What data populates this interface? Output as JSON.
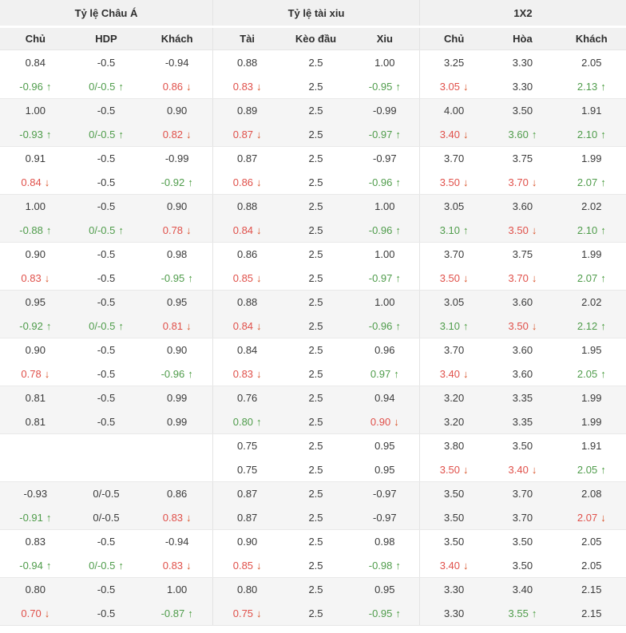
{
  "table": {
    "groups": [
      {
        "label": "Tỷ lệ Châu Á"
      },
      {
        "label": "Tỷ lệ tài xiu"
      },
      {
        "label": "1X2"
      }
    ],
    "columns": [
      "Chủ",
      "HDP",
      "Khách",
      "Tài",
      "Kèo đầu",
      "Xiu",
      "Chủ",
      "Hòa",
      "Khách"
    ],
    "icons": {
      "up_arrow": "↑",
      "down_arrow": "↓"
    },
    "colors": {
      "up_green": "#4f9c4b",
      "down_red": "#e0504a",
      "down_arrow_red": "#d8532a",
      "up_arrow_green": "#4a9c3f",
      "header_bg": "#f1f1f1",
      "row_alt_bg": "#f5f5f5",
      "border": "#e3e3e3",
      "text": "#3b3b3b"
    },
    "rows": [
      {
        "shade": "white",
        "cells": [
          [
            "0.84",
            ""
          ],
          [
            "-0.5",
            ""
          ],
          [
            "-0.94",
            ""
          ],
          [
            "0.88",
            ""
          ],
          [
            "2.5",
            ""
          ],
          [
            "1.00",
            ""
          ],
          [
            "3.25",
            ""
          ],
          [
            "3.30",
            ""
          ],
          [
            "2.05",
            ""
          ]
        ]
      },
      {
        "shade": "white",
        "cells": [
          [
            "-0.96",
            "up"
          ],
          [
            "0/-0.5",
            "up"
          ],
          [
            "0.86",
            "down"
          ],
          [
            "0.83",
            "down"
          ],
          [
            "2.5",
            ""
          ],
          [
            "-0.95",
            "up"
          ],
          [
            "3.05",
            "down"
          ],
          [
            "3.30",
            ""
          ],
          [
            "2.13",
            "up"
          ]
        ]
      },
      {
        "shade": "gray",
        "cells": [
          [
            "1.00",
            ""
          ],
          [
            "-0.5",
            ""
          ],
          [
            "0.90",
            ""
          ],
          [
            "0.89",
            ""
          ],
          [
            "2.5",
            ""
          ],
          [
            "-0.99",
            ""
          ],
          [
            "4.00",
            ""
          ],
          [
            "3.50",
            ""
          ],
          [
            "1.91",
            ""
          ]
        ]
      },
      {
        "shade": "gray",
        "cells": [
          [
            "-0.93",
            "up"
          ],
          [
            "0/-0.5",
            "up"
          ],
          [
            "0.82",
            "down"
          ],
          [
            "0.87",
            "down"
          ],
          [
            "2.5",
            ""
          ],
          [
            "-0.97",
            "up"
          ],
          [
            "3.40",
            "down"
          ],
          [
            "3.60",
            "up"
          ],
          [
            "2.10",
            "up"
          ]
        ]
      },
      {
        "shade": "white",
        "cells": [
          [
            "0.91",
            ""
          ],
          [
            "-0.5",
            ""
          ],
          [
            "-0.99",
            ""
          ],
          [
            "0.87",
            ""
          ],
          [
            "2.5",
            ""
          ],
          [
            "-0.97",
            ""
          ],
          [
            "3.70",
            ""
          ],
          [
            "3.75",
            ""
          ],
          [
            "1.99",
            ""
          ]
        ]
      },
      {
        "shade": "white",
        "cells": [
          [
            "0.84",
            "down"
          ],
          [
            "-0.5",
            ""
          ],
          [
            "-0.92",
            "up"
          ],
          [
            "0.86",
            "down"
          ],
          [
            "2.5",
            ""
          ],
          [
            "-0.96",
            "up"
          ],
          [
            "3.50",
            "down"
          ],
          [
            "3.70",
            "down"
          ],
          [
            "2.07",
            "up"
          ]
        ]
      },
      {
        "shade": "gray",
        "cells": [
          [
            "1.00",
            ""
          ],
          [
            "-0.5",
            ""
          ],
          [
            "0.90",
            ""
          ],
          [
            "0.88",
            ""
          ],
          [
            "2.5",
            ""
          ],
          [
            "1.00",
            ""
          ],
          [
            "3.05",
            ""
          ],
          [
            "3.60",
            ""
          ],
          [
            "2.02",
            ""
          ]
        ]
      },
      {
        "shade": "gray",
        "cells": [
          [
            "-0.88",
            "up"
          ],
          [
            "0/-0.5",
            "up"
          ],
          [
            "0.78",
            "down"
          ],
          [
            "0.84",
            "down"
          ],
          [
            "2.5",
            ""
          ],
          [
            "-0.96",
            "up"
          ],
          [
            "3.10",
            "up"
          ],
          [
            "3.50",
            "down"
          ],
          [
            "2.10",
            "up"
          ]
        ]
      },
      {
        "shade": "white",
        "cells": [
          [
            "0.90",
            ""
          ],
          [
            "-0.5",
            ""
          ],
          [
            "0.98",
            ""
          ],
          [
            "0.86",
            ""
          ],
          [
            "2.5",
            ""
          ],
          [
            "1.00",
            ""
          ],
          [
            "3.70",
            ""
          ],
          [
            "3.75",
            ""
          ],
          [
            "1.99",
            ""
          ]
        ]
      },
      {
        "shade": "white",
        "cells": [
          [
            "0.83",
            "down"
          ],
          [
            "-0.5",
            ""
          ],
          [
            "-0.95",
            "up"
          ],
          [
            "0.85",
            "down"
          ],
          [
            "2.5",
            ""
          ],
          [
            "-0.97",
            "up"
          ],
          [
            "3.50",
            "down"
          ],
          [
            "3.70",
            "down"
          ],
          [
            "2.07",
            "up"
          ]
        ]
      },
      {
        "shade": "gray",
        "cells": [
          [
            "0.95",
            ""
          ],
          [
            "-0.5",
            ""
          ],
          [
            "0.95",
            ""
          ],
          [
            "0.88",
            ""
          ],
          [
            "2.5",
            ""
          ],
          [
            "1.00",
            ""
          ],
          [
            "3.05",
            ""
          ],
          [
            "3.60",
            ""
          ],
          [
            "2.02",
            ""
          ]
        ]
      },
      {
        "shade": "gray",
        "cells": [
          [
            "-0.92",
            "up"
          ],
          [
            "0/-0.5",
            "up"
          ],
          [
            "0.81",
            "down"
          ],
          [
            "0.84",
            "down"
          ],
          [
            "2.5",
            ""
          ],
          [
            "-0.96",
            "up"
          ],
          [
            "3.10",
            "up"
          ],
          [
            "3.50",
            "down"
          ],
          [
            "2.12",
            "up"
          ]
        ]
      },
      {
        "shade": "white",
        "cells": [
          [
            "0.90",
            ""
          ],
          [
            "-0.5",
            ""
          ],
          [
            "0.90",
            ""
          ],
          [
            "0.84",
            ""
          ],
          [
            "2.5",
            ""
          ],
          [
            "0.96",
            ""
          ],
          [
            "3.70",
            ""
          ],
          [
            "3.60",
            ""
          ],
          [
            "1.95",
            ""
          ]
        ]
      },
      {
        "shade": "white",
        "cells": [
          [
            "0.78",
            "down"
          ],
          [
            "-0.5",
            ""
          ],
          [
            "-0.96",
            "up"
          ],
          [
            "0.83",
            "down"
          ],
          [
            "2.5",
            ""
          ],
          [
            "0.97",
            "up"
          ],
          [
            "3.40",
            "down"
          ],
          [
            "3.60",
            ""
          ],
          [
            "2.05",
            "up"
          ]
        ]
      },
      {
        "shade": "gray",
        "cells": [
          [
            "0.81",
            ""
          ],
          [
            "-0.5",
            ""
          ],
          [
            "0.99",
            ""
          ],
          [
            "0.76",
            ""
          ],
          [
            "2.5",
            ""
          ],
          [
            "0.94",
            ""
          ],
          [
            "3.20",
            ""
          ],
          [
            "3.35",
            ""
          ],
          [
            "1.99",
            ""
          ]
        ]
      },
      {
        "shade": "gray",
        "cells": [
          [
            "0.81",
            ""
          ],
          [
            "-0.5",
            ""
          ],
          [
            "0.99",
            ""
          ],
          [
            "0.80",
            "up"
          ],
          [
            "2.5",
            ""
          ],
          [
            "0.90",
            "down"
          ],
          [
            "3.20",
            ""
          ],
          [
            "3.35",
            ""
          ],
          [
            "1.99",
            ""
          ]
        ]
      },
      {
        "shade": "white",
        "cells": [
          [
            "",
            ""
          ],
          [
            "",
            ""
          ],
          [
            "",
            ""
          ],
          [
            "0.75",
            ""
          ],
          [
            "2.5",
            ""
          ],
          [
            "0.95",
            ""
          ],
          [
            "3.80",
            ""
          ],
          [
            "3.50",
            ""
          ],
          [
            "1.91",
            ""
          ]
        ]
      },
      {
        "shade": "white",
        "cells": [
          [
            "",
            ""
          ],
          [
            "",
            ""
          ],
          [
            "",
            ""
          ],
          [
            "0.75",
            ""
          ],
          [
            "2.5",
            ""
          ],
          [
            "0.95",
            ""
          ],
          [
            "3.50",
            "down"
          ],
          [
            "3.40",
            "down"
          ],
          [
            "2.05",
            "up"
          ]
        ]
      },
      {
        "shade": "gray",
        "cells": [
          [
            "-0.93",
            ""
          ],
          [
            "0/-0.5",
            ""
          ],
          [
            "0.86",
            ""
          ],
          [
            "0.87",
            ""
          ],
          [
            "2.5",
            ""
          ],
          [
            "-0.97",
            ""
          ],
          [
            "3.50",
            ""
          ],
          [
            "3.70",
            ""
          ],
          [
            "2.08",
            ""
          ]
        ]
      },
      {
        "shade": "gray",
        "cells": [
          [
            "-0.91",
            "up"
          ],
          [
            "0/-0.5",
            ""
          ],
          [
            "0.83",
            "down"
          ],
          [
            "0.87",
            ""
          ],
          [
            "2.5",
            ""
          ],
          [
            "-0.97",
            ""
          ],
          [
            "3.50",
            ""
          ],
          [
            "3.70",
            ""
          ],
          [
            "2.07",
            "down"
          ]
        ]
      },
      {
        "shade": "white",
        "cells": [
          [
            "0.83",
            ""
          ],
          [
            "-0.5",
            ""
          ],
          [
            "-0.94",
            ""
          ],
          [
            "0.90",
            ""
          ],
          [
            "2.5",
            ""
          ],
          [
            "0.98",
            ""
          ],
          [
            "3.50",
            ""
          ],
          [
            "3.50",
            ""
          ],
          [
            "2.05",
            ""
          ]
        ]
      },
      {
        "shade": "white",
        "cells": [
          [
            "-0.94",
            "up"
          ],
          [
            "0/-0.5",
            "up"
          ],
          [
            "0.83",
            "down"
          ],
          [
            "0.85",
            "down"
          ],
          [
            "2.5",
            ""
          ],
          [
            "-0.98",
            "up"
          ],
          [
            "3.40",
            "down"
          ],
          [
            "3.50",
            ""
          ],
          [
            "2.05",
            ""
          ]
        ]
      },
      {
        "shade": "gray",
        "cells": [
          [
            "0.80",
            ""
          ],
          [
            "-0.5",
            ""
          ],
          [
            "1.00",
            ""
          ],
          [
            "0.80",
            ""
          ],
          [
            "2.5",
            ""
          ],
          [
            "0.95",
            ""
          ],
          [
            "3.30",
            ""
          ],
          [
            "3.40",
            ""
          ],
          [
            "2.15",
            ""
          ]
        ]
      },
      {
        "shade": "gray",
        "cells": [
          [
            "0.70",
            "down"
          ],
          [
            "-0.5",
            ""
          ],
          [
            "-0.87",
            "up"
          ],
          [
            "0.75",
            "down"
          ],
          [
            "2.5",
            ""
          ],
          [
            "-0.95",
            "up"
          ],
          [
            "3.30",
            ""
          ],
          [
            "3.55",
            "up"
          ],
          [
            "2.15",
            ""
          ]
        ]
      }
    ]
  }
}
